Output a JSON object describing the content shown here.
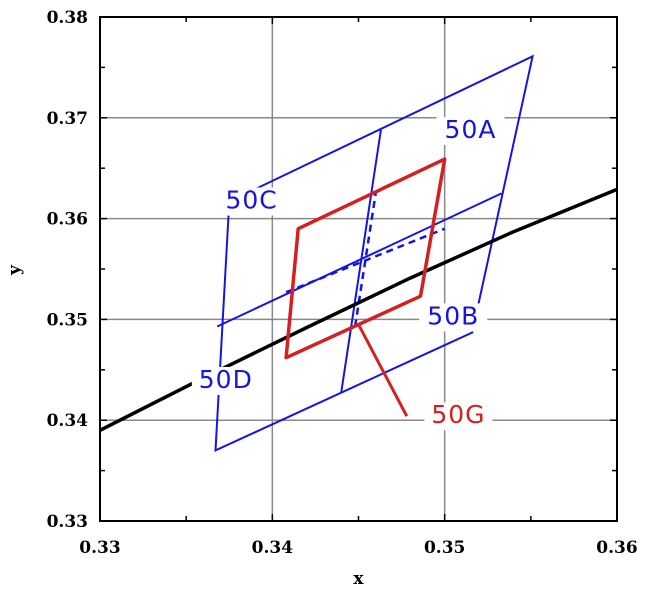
{
  "chart_data": {
    "type": "line",
    "xlabel": "x",
    "ylabel": "y",
    "xlim": [
      0.33,
      0.36
    ],
    "ylim": [
      0.33,
      0.38
    ],
    "x_ticks": [
      "0.33",
      "0.34",
      "0.35",
      "0.36"
    ],
    "y_ticks": [
      "0.33",
      "0.34",
      "0.35",
      "0.36",
      "0.37",
      "0.38"
    ],
    "grid": true,
    "colors": {
      "blue": "#1515e0",
      "red": "#d42020",
      "black": "#000000",
      "grid": "#8a8a8a"
    },
    "blue_outer_quad": [
      [
        0.3367,
        0.337
      ],
      [
        0.3375,
        0.3617
      ],
      [
        0.3551,
        0.3761
      ],
      [
        0.3516,
        0.3487
      ]
    ],
    "blue_divider_1": [
      [
        0.3368,
        0.3493
      ],
      [
        0.3533,
        0.3625
      ]
    ],
    "blue_divider_2": [
      [
        0.344,
        0.3428
      ],
      [
        0.3463,
        0.3688
      ]
    ],
    "blue_dashed": [
      [
        0.3408,
        0.3527
      ],
      [
        0.35,
        0.359
      ],
      [
        0.3448,
        0.3493
      ],
      [
        0.346,
        0.3625
      ]
    ],
    "red_quad": [
      [
        0.3408,
        0.3462
      ],
      [
        0.3415,
        0.359
      ],
      [
        0.35,
        0.3659
      ],
      [
        0.3486,
        0.3523
      ]
    ],
    "black_curve": [
      [
        0.33,
        0.339
      ],
      [
        0.336,
        0.3442
      ],
      [
        0.342,
        0.3492
      ],
      [
        0.348,
        0.3541
      ],
      [
        0.354,
        0.3587
      ],
      [
        0.36,
        0.3629
      ]
    ],
    "leader_line": [
      [
        0.345,
        0.3495
      ],
      [
        0.3478,
        0.3404
      ]
    ],
    "regions": [
      {
        "label": "50A",
        "x": 0.3515,
        "y": 0.368,
        "color": "#1515e0"
      },
      {
        "label": "50B",
        "x": 0.3505,
        "y": 0.3495,
        "color": "#1515e0"
      },
      {
        "label": "50C",
        "x": 0.3388,
        "y": 0.361,
        "color": "#1515e0"
      },
      {
        "label": "50D",
        "x": 0.3373,
        "y": 0.3432,
        "color": "#1515e0"
      },
      {
        "label": "50G",
        "x": 0.3508,
        "y": 0.3397,
        "color": "#d42020"
      }
    ]
  }
}
